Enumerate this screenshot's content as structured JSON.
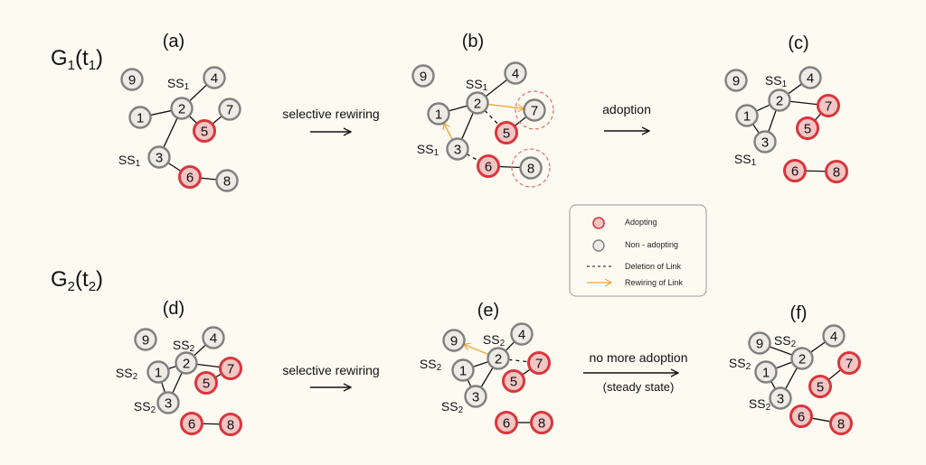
{
  "rows": [
    {
      "title": "G",
      "title_sub": "1",
      "title_paren": "t",
      "title_paren_sub": "1"
    },
    {
      "title": "G",
      "title_sub": "2",
      "title_paren": "t",
      "title_paren_sub": "2"
    }
  ],
  "panels": [
    {
      "id": "a",
      "label": "(a)",
      "adopting": [
        "5",
        "6"
      ],
      "ss_text": "SS",
      "ss_sub": "1",
      "edges": [
        [
          "2",
          "4",
          "solid"
        ],
        [
          "2",
          "1",
          "solid"
        ],
        [
          "2",
          "5",
          "solid"
        ],
        [
          "5",
          "7",
          "solid"
        ],
        [
          "2",
          "3",
          "solid"
        ],
        [
          "3",
          "6",
          "solid"
        ],
        [
          "6",
          "8",
          "solid"
        ]
      ]
    },
    {
      "id": "b",
      "label": "(b)",
      "adopting": [
        "5",
        "6"
      ],
      "ss_text": "SS",
      "ss_sub": "1",
      "highlighted": [
        "7",
        "8"
      ],
      "edges": [
        [
          "1",
          "2",
          "solid"
        ],
        [
          "2",
          "4",
          "solid"
        ],
        [
          "2",
          "3",
          "solid"
        ],
        [
          "5",
          "7",
          "solid"
        ],
        [
          "6",
          "8",
          "solid"
        ],
        [
          "2",
          "5",
          "deleted"
        ],
        [
          "3",
          "6",
          "deleted"
        ],
        [
          "2",
          "7",
          "rewired"
        ],
        [
          "3",
          "1",
          "rewired"
        ]
      ]
    },
    {
      "id": "c",
      "label": "(c)",
      "adopting": [
        "5",
        "6",
        "7",
        "8"
      ],
      "ss_text": "SS",
      "ss_sub": "1",
      "edges": [
        [
          "2",
          "4",
          "solid"
        ],
        [
          "1",
          "2",
          "solid"
        ],
        [
          "2",
          "7",
          "solid"
        ],
        [
          "7",
          "5",
          "solid"
        ],
        [
          "1",
          "3",
          "solid"
        ],
        [
          "2",
          "3",
          "solid"
        ],
        [
          "6",
          "8",
          "solid"
        ]
      ]
    },
    {
      "id": "d",
      "label": "(d)",
      "adopting": [
        "5",
        "6",
        "7",
        "8"
      ],
      "ss_text": "SS",
      "ss_sub": "2",
      "edges": [
        [
          "2",
          "4",
          "solid"
        ],
        [
          "1",
          "2",
          "solid"
        ],
        [
          "2",
          "7",
          "solid"
        ],
        [
          "7",
          "5",
          "solid"
        ],
        [
          "1",
          "3",
          "solid"
        ],
        [
          "2",
          "3",
          "solid"
        ],
        [
          "6",
          "8",
          "solid"
        ]
      ]
    },
    {
      "id": "e",
      "label": "(e)",
      "adopting": [
        "5",
        "6",
        "7",
        "8"
      ],
      "ss_text": "SS",
      "ss_sub": "2",
      "edges": [
        [
          "2",
          "4",
          "solid"
        ],
        [
          "1",
          "2",
          "solid"
        ],
        [
          "2",
          "3",
          "solid"
        ],
        [
          "1",
          "3",
          "solid"
        ],
        [
          "5",
          "7",
          "solid"
        ],
        [
          "6",
          "8",
          "solid"
        ],
        [
          "2",
          "7",
          "deleted"
        ],
        [
          "2",
          "9",
          "rewired"
        ]
      ]
    },
    {
      "id": "f",
      "label": "(f)",
      "adopting": [
        "5",
        "6",
        "7",
        "8"
      ],
      "ss_text": "SS",
      "ss_sub": "2",
      "edges": [
        [
          "9",
          "2",
          "solid"
        ],
        [
          "2",
          "4",
          "solid"
        ],
        [
          "1",
          "2",
          "solid"
        ],
        [
          "1",
          "3",
          "solid"
        ],
        [
          "2",
          "3",
          "solid"
        ],
        [
          "7",
          "5",
          "solid"
        ],
        [
          "6",
          "8",
          "solid"
        ]
      ]
    }
  ],
  "transitions": [
    {
      "from": "a",
      "to": "b",
      "text": "selective rewiring"
    },
    {
      "from": "b",
      "to": "c",
      "text": "adoption"
    },
    {
      "from": "d",
      "to": "e",
      "text": "selective rewiring"
    },
    {
      "from": "e",
      "to": "f",
      "text": "no more adoption",
      "subtext": "(steady state)"
    }
  ],
  "legend": {
    "items": [
      {
        "symbol": "adopting-node",
        "label": "Adopting"
      },
      {
        "symbol": "non-adopting-node",
        "label": "Non - adopting"
      },
      {
        "symbol": "dashed-line",
        "label": "Deletion of Link"
      },
      {
        "symbol": "orange-arrow",
        "label": "Rewiring of Link"
      }
    ]
  },
  "colors": {
    "background": "#fdfaf2",
    "adopting_fill": "#f2c6c4",
    "adopting_stroke": "#d8363c",
    "non_adopting_fill": "#ecebe5",
    "non_adopting_stroke": "#808080",
    "rewire": "#eba93a",
    "highlight": "#e06a6a"
  }
}
